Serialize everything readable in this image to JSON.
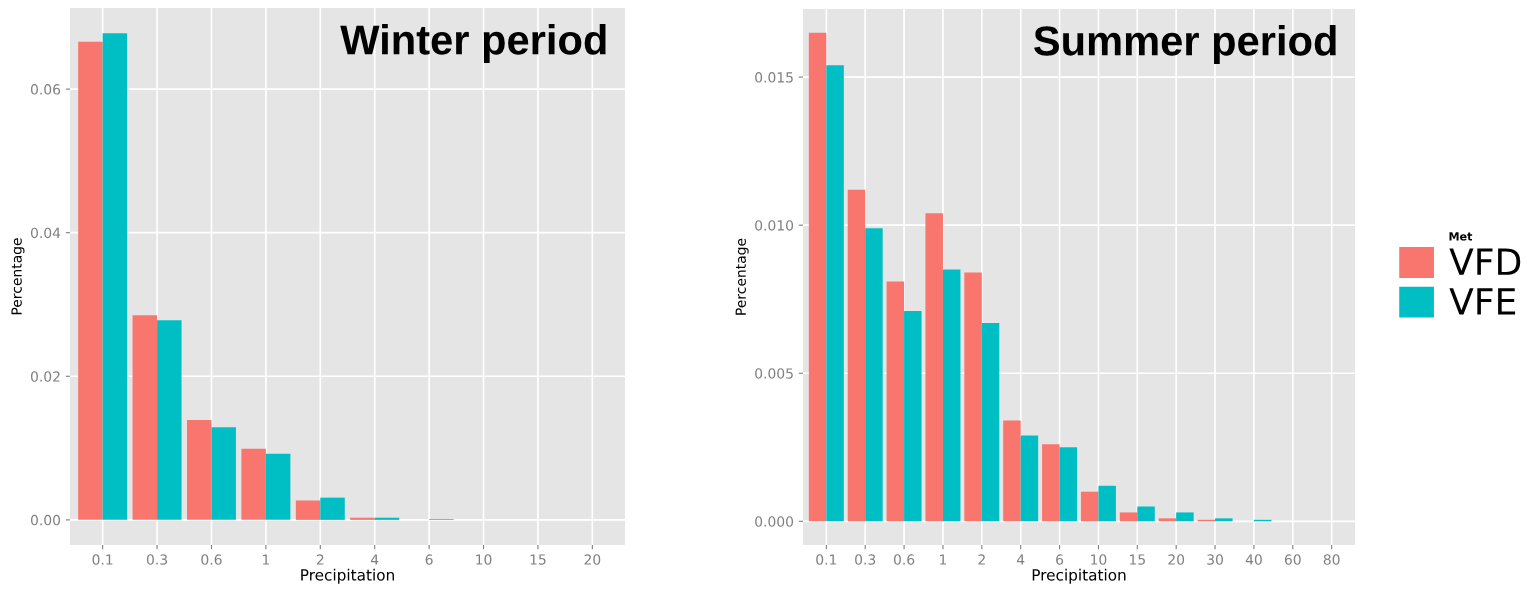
{
  "chart_data": [
    {
      "type": "bar",
      "title": "Winter period",
      "xlabel": "Precipitation",
      "ylabel": "Percentage",
      "categories": [
        "0.1",
        "0.3",
        "0.6",
        "1",
        "2",
        "4",
        "6",
        "10",
        "15",
        "20"
      ],
      "series": [
        {
          "color": "#f8766d",
          "values": [
            0.0666,
            0.0285,
            0.0139,
            0.0099,
            0.0027,
            0.0003,
            0,
            0,
            0,
            0
          ]
        },
        {
          "color": "#00bfc4",
          "values": [
            0.0678,
            0.0278,
            0.0129,
            0.0092,
            0.0031,
            0.0003,
            0.0001,
            0,
            0,
            0
          ]
        }
      ],
      "ylim": [
        -0.0035,
        0.0713
      ],
      "yticks": [
        {
          "value": 0,
          "label": "0.00"
        },
        {
          "value": 0.02,
          "label": "0.02"
        },
        {
          "value": 0.04,
          "label": "0.04"
        },
        {
          "value": 0.06,
          "label": "0.06"
        }
      ],
      "grid": true
    },
    {
      "type": "bar",
      "title": "Summer period",
      "xlabel": "Precipitation",
      "ylabel": "Percentage",
      "categories": [
        "0.1",
        "0.3",
        "0.6",
        "1",
        "2",
        "4",
        "6",
        "10",
        "15",
        "20",
        "30",
        "40",
        "60",
        "80"
      ],
      "series": [
        {
          "name": "VFD",
          "color": "#f8766d",
          "values": [
            0.0165,
            0.0112,
            0.0081,
            0.0104,
            0.0084,
            0.0034,
            0.0026,
            0.001,
            0.0003,
            0.0001,
            5e-05,
            0,
            0,
            0
          ]
        },
        {
          "name": "VFE",
          "color": "#00bfc4",
          "values": [
            0.0154,
            0.0099,
            0.0071,
            0.0085,
            0.0067,
            0.0029,
            0.0025,
            0.0012,
            0.0005,
            0.0003,
            0.0001,
            5e-05,
            0,
            0
          ]
        }
      ],
      "ylim": [
        -0.0008,
        0.0173
      ],
      "yticks": [
        {
          "value": 0,
          "label": "0.000"
        },
        {
          "value": 0.005,
          "label": "0.005"
        },
        {
          "value": 0.01,
          "label": "0.010"
        },
        {
          "value": 0.015,
          "label": "0.015"
        }
      ],
      "grid": true,
      "legend": "right",
      "legend_title": "Met"
    }
  ]
}
